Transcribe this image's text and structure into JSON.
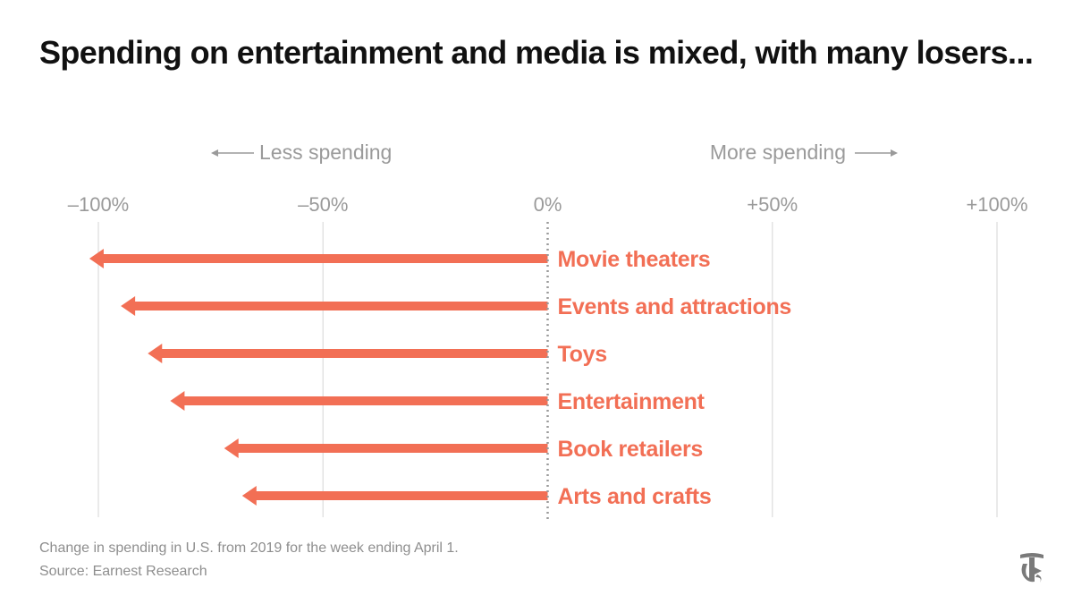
{
  "header": {
    "title": "Spending on entertainment and media is mixed, with many losers..."
  },
  "direction_labels": {
    "less": "Less spending",
    "more": "More spending"
  },
  "chart_data": {
    "type": "bar",
    "orientation": "horizontal",
    "categories": [
      "Movie theaters",
      "Events and attractions",
      "Toys",
      "Entertainment",
      "Book retailers",
      "Arts and crafts"
    ],
    "values": [
      -102,
      -95,
      -89,
      -84,
      -72,
      -68
    ],
    "unit": "%",
    "xlim": [
      -100,
      100
    ],
    "tick_values": [
      -100,
      -50,
      0,
      50,
      100
    ],
    "tick_labels": [
      "–100%",
      "–50%",
      "0%",
      "+50%",
      "+100%"
    ],
    "grid": true,
    "bar_color": "#f26f55",
    "label_color": "#f26f55"
  },
  "footer": {
    "note": "Change in spending in U.S. from 2019 for the week ending April 1.",
    "source": "Source: Earnest Research"
  },
  "logo": {
    "icon": "nyt-t-logo-icon"
  }
}
